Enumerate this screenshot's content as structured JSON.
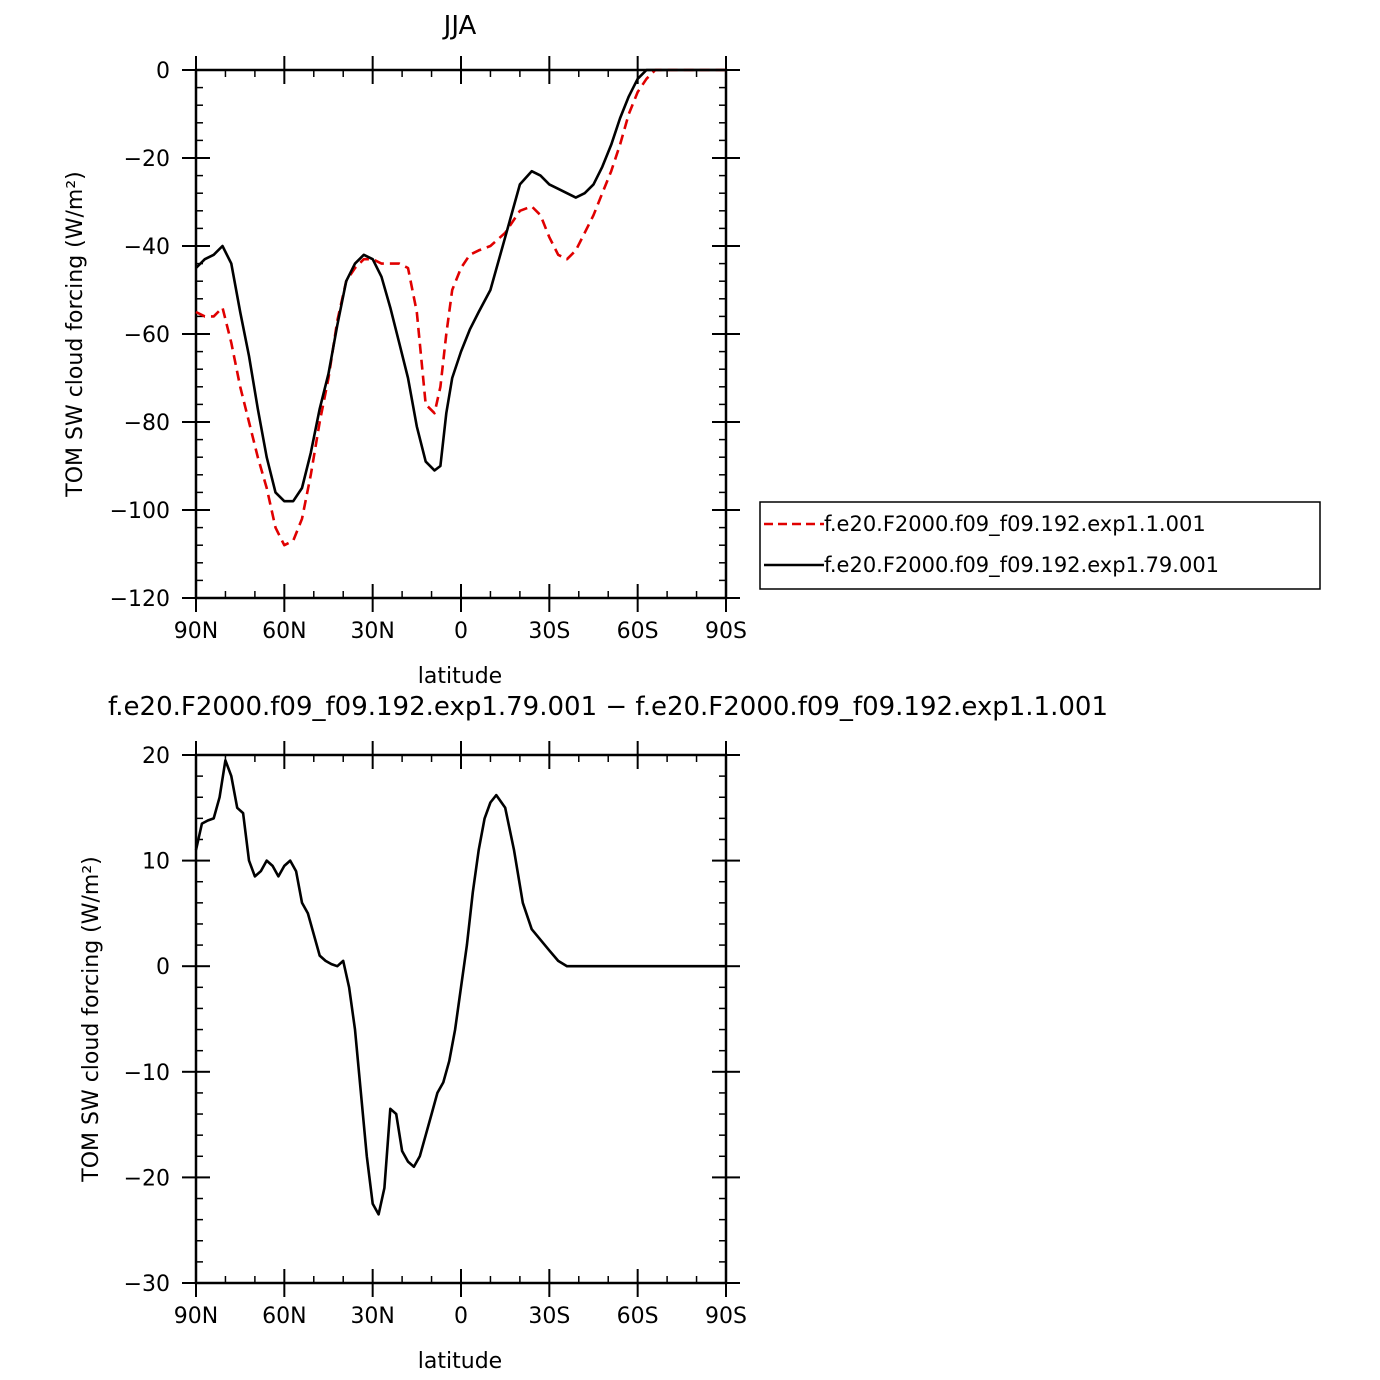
{
  "chart_data": [
    {
      "type": "line",
      "title": "JJA",
      "xlabel": "latitude",
      "ylabel": "TOM SW cloud forcing (W/m²)",
      "xlim": [
        90,
        -90
      ],
      "ylim": [
        -120,
        0
      ],
      "xticks": [
        90,
        60,
        30,
        0,
        -30,
        -60,
        -90
      ],
      "xtick_labels": [
        "90N",
        "60N",
        "30N",
        "0",
        "30S",
        "60S",
        "90S"
      ],
      "yticks": [
        0,
        -20,
        -40,
        -60,
        -80,
        -100,
        -120
      ],
      "ytick_labels": [
        "0",
        "−20",
        "−40",
        "−60",
        "−80",
        "−100",
        "−120"
      ],
      "legend_position": "right",
      "series": [
        {
          "name": "f.e20.F2000.f09_f09.192.exp1.1.001",
          "color": "#e00000",
          "dash": true,
          "x": [
            90,
            87,
            84,
            81,
            78,
            75,
            72,
            69,
            66,
            63,
            60,
            57,
            54,
            51,
            48,
            45,
            42,
            39,
            36,
            33,
            30,
            27,
            24,
            21,
            18,
            15,
            12,
            9,
            7,
            5,
            3,
            0,
            -3,
            -6,
            -10,
            -15,
            -20,
            -24,
            -27,
            -30,
            -33,
            -36,
            -39,
            -42,
            -45,
            -48,
            -51,
            -54,
            -57,
            -60,
            -63,
            -66,
            -68,
            -72,
            -78,
            -84,
            -90
          ],
          "y": [
            -55,
            -56,
            -56,
            -54,
            -62,
            -72,
            -80,
            -88,
            -95,
            -104,
            -108,
            -107,
            -102,
            -92,
            -80,
            -70,
            -57,
            -48,
            -45,
            -43,
            -43,
            -44,
            -44,
            -44,
            -45,
            -55,
            -76,
            -78,
            -72,
            -60,
            -50,
            -45,
            -42,
            -41,
            -40,
            -37,
            -32,
            -31,
            -33,
            -38,
            -42,
            -43,
            -41,
            -37,
            -33,
            -28,
            -23,
            -17,
            -10,
            -5,
            -2,
            0,
            0,
            0,
            0,
            0,
            0
          ]
        },
        {
          "name": "f.e20.F2000.f09_f09.192.exp1.79.001",
          "color": "#000000",
          "dash": false,
          "x": [
            90,
            87,
            84,
            81,
            78,
            75,
            72,
            69,
            66,
            63,
            60,
            57,
            54,
            51,
            48,
            45,
            42,
            39,
            36,
            33,
            30,
            27,
            24,
            21,
            18,
            15,
            12,
            9,
            7,
            5,
            3,
            0,
            -3,
            -6,
            -10,
            -15,
            -20,
            -24,
            -27,
            -30,
            -33,
            -36,
            -39,
            -42,
            -45,
            -48,
            -51,
            -54,
            -57,
            -60,
            -63,
            -66,
            -68,
            -72,
            -78,
            -84,
            -90
          ],
          "y": [
            -45,
            -43,
            -42,
            -40,
            -44,
            -55,
            -65,
            -77,
            -88,
            -96,
            -98,
            -98,
            -95,
            -87,
            -77,
            -69,
            -58,
            -48,
            -44,
            -42,
            -43,
            -47,
            -54,
            -62,
            -70,
            -81,
            -89,
            -91,
            -90,
            -78,
            -70,
            -64,
            -59,
            -55,
            -50,
            -38,
            -26,
            -23,
            -24,
            -26,
            -27,
            -28,
            -29,
            -28,
            -26,
            -22,
            -17,
            -11,
            -6,
            -2,
            0,
            0,
            0,
            0,
            0,
            0,
            0
          ]
        }
      ]
    },
    {
      "type": "line",
      "title": "f.e20.F2000.f09_f09.192.exp1.79.001  −  f.e20.F2000.f09_f09.192.exp1.1.001",
      "xlabel": "latitude",
      "ylabel": "TOM SW cloud forcing (W/m²)",
      "xlim": [
        90,
        -90
      ],
      "ylim": [
        -30,
        20
      ],
      "xticks": [
        90,
        60,
        30,
        0,
        -30,
        -60,
        -90
      ],
      "xtick_labels": [
        "90N",
        "60N",
        "30N",
        "0",
        "30S",
        "60S",
        "90S"
      ],
      "yticks": [
        20,
        10,
        0,
        -10,
        -20,
        -30
      ],
      "ytick_labels": [
        "20",
        "10",
        "0",
        "−10",
        "−20",
        "−30"
      ],
      "series": [
        {
          "color": "#000000",
          "dash": false,
          "x": [
            90,
            88,
            86,
            84,
            82,
            80,
            78,
            76,
            74,
            72,
            70,
            68,
            66,
            64,
            62,
            60,
            58,
            56,
            54,
            52,
            50,
            48,
            46,
            44,
            42,
            40,
            38,
            36,
            34,
            32,
            30,
            28,
            26,
            24,
            22,
            20,
            18,
            16,
            14,
            12,
            10,
            8,
            6,
            4,
            2,
            0,
            -2,
            -4,
            -6,
            -8,
            -10,
            -12,
            -15,
            -18,
            -21,
            -24,
            -27,
            -30,
            -33,
            -36,
            -38,
            -40,
            -42,
            -45,
            -48,
            -51,
            -54,
            -57,
            -60,
            -63,
            -66,
            -70,
            -75,
            -80,
            -85,
            -90
          ],
          "y": [
            11,
            13.5,
            13.8,
            14,
            16,
            19.5,
            18,
            15,
            14.5,
            10,
            8.5,
            9,
            10,
            9.5,
            8.5,
            9.5,
            10,
            9,
            6,
            5,
            3,
            1,
            0.5,
            0.2,
            0,
            0.5,
            -2,
            -6,
            -12,
            -18,
            -22.5,
            -23.5,
            -21,
            -13.5,
            -14,
            -17.5,
            -18.5,
            -19,
            -18,
            -16,
            -14,
            -12,
            -11,
            -9,
            -6,
            -2,
            2,
            7,
            11,
            14,
            15.5,
            16.2,
            15,
            11,
            6,
            3.5,
            2.5,
            1.5,
            0.5,
            0,
            0,
            0,
            0,
            0,
            0,
            0,
            0,
            0,
            0,
            0,
            0,
            0,
            0,
            0,
            0,
            0
          ]
        }
      ]
    }
  ]
}
